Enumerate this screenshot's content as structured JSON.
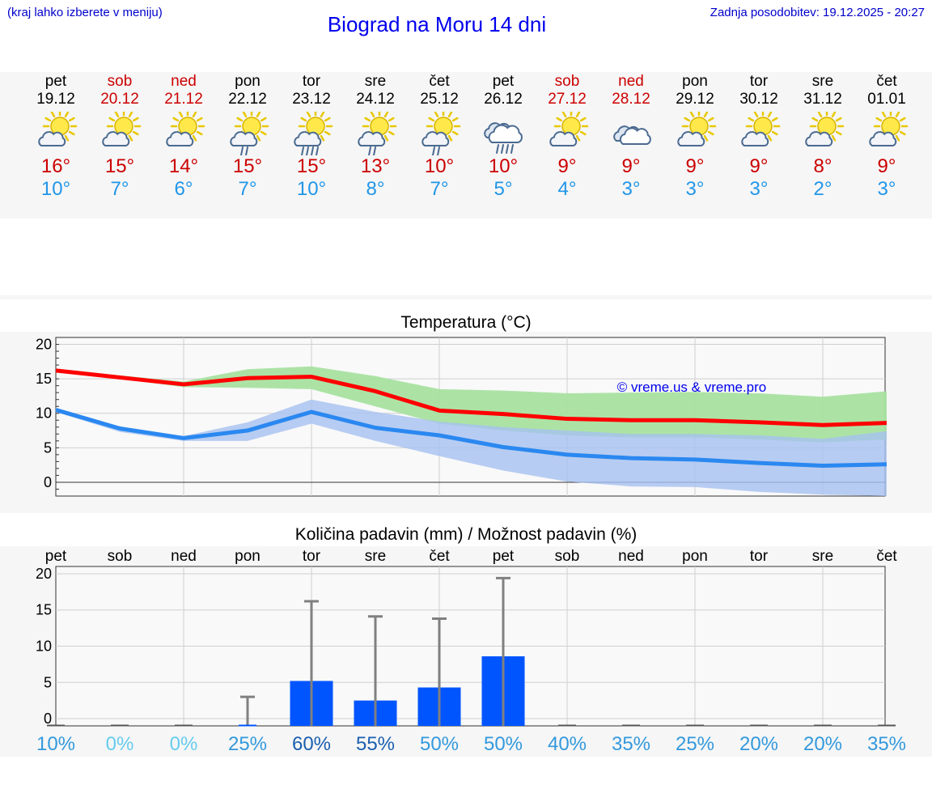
{
  "header": {
    "location_hint": "(kraj lahko izberete v meniju)",
    "title": "Biograd na Moru 14 dni",
    "updated": "Zadnja posodobitev: 19.12.2025 - 20:27"
  },
  "days": [
    {
      "name": "pet",
      "date": "19.12",
      "max": "16°",
      "min": "10°",
      "icon": "partly-cloudy-icon",
      "weekend": false
    },
    {
      "name": "sob",
      "date": "20.12",
      "max": "15°",
      "min": "7°",
      "icon": "partly-cloudy-icon",
      "weekend": true
    },
    {
      "name": "ned",
      "date": "21.12",
      "max": "14°",
      "min": "6°",
      "icon": "partly-cloudy-icon",
      "weekend": true
    },
    {
      "name": "pon",
      "date": "22.12",
      "max": "15°",
      "min": "7°",
      "icon": "partly-cloudy-light-rain-icon",
      "weekend": false
    },
    {
      "name": "tor",
      "date": "23.12",
      "max": "15°",
      "min": "10°",
      "icon": "partly-cloudy-rain-icon",
      "weekend": false
    },
    {
      "name": "sre",
      "date": "24.12",
      "max": "13°",
      "min": "8°",
      "icon": "partly-cloudy-light-rain-icon",
      "weekend": false
    },
    {
      "name": "čet",
      "date": "25.12",
      "max": "10°",
      "min": "7°",
      "icon": "partly-cloudy-light-rain-icon",
      "weekend": false
    },
    {
      "name": "pet",
      "date": "26.12",
      "max": "10°",
      "min": "5°",
      "icon": "cloudy-rain-icon",
      "weekend": false
    },
    {
      "name": "sob",
      "date": "27.12",
      "max": "9°",
      "min": "4°",
      "icon": "partly-cloudy-icon",
      "weekend": true
    },
    {
      "name": "ned",
      "date": "28.12",
      "max": "9°",
      "min": "3°",
      "icon": "cloudy-icon",
      "weekend": true
    },
    {
      "name": "pon",
      "date": "29.12",
      "max": "9°",
      "min": "3°",
      "icon": "partly-cloudy-icon",
      "weekend": false
    },
    {
      "name": "tor",
      "date": "30.12",
      "max": "9°",
      "min": "3°",
      "icon": "partly-cloudy-icon",
      "weekend": false
    },
    {
      "name": "sre",
      "date": "31.12",
      "max": "8°",
      "min": "2°",
      "icon": "partly-cloudy-icon",
      "weekend": false
    },
    {
      "name": "čet",
      "date": "01.01",
      "max": "9°",
      "min": "3°",
      "icon": "partly-cloudy-icon",
      "weekend": false
    }
  ],
  "colors": {
    "max": "#cc0000",
    "min": "#2196e8",
    "max_line": "#ff0000",
    "min_line": "#2a88f0",
    "max_band": "#a8e2a0",
    "min_band": "#a6c0f0",
    "bar": "#0055ff",
    "whisker": "#808080",
    "watermark": "#0000ee"
  },
  "chart_data": [
    {
      "type": "line",
      "title": "Temperatura (°C)",
      "watermark": "© vreme.us & vreme.pro",
      "ylim": [
        -2,
        21
      ],
      "yticks": [
        0,
        5,
        10,
        15,
        20
      ],
      "x": [
        1,
        2,
        3,
        4,
        5,
        6,
        7,
        8,
        9,
        10,
        11,
        12,
        13,
        14
      ],
      "series": [
        {
          "name": "max",
          "values": [
            16.2,
            15.2,
            14.2,
            15.1,
            15.3,
            13.2,
            10.4,
            9.9,
            9.2,
            9.0,
            9.0,
            8.7,
            8.3,
            8.6
          ],
          "band_low": [
            16.0,
            15.0,
            13.8,
            13.7,
            13.5,
            11.0,
            8.5,
            7.5,
            6.8,
            6.5,
            6.5,
            6.2,
            5.8,
            6.2
          ],
          "band_high": [
            16.4,
            15.5,
            14.6,
            16.4,
            16.8,
            15.4,
            13.5,
            13.3,
            12.9,
            13.0,
            13.1,
            12.9,
            12.4,
            13.2
          ]
        },
        {
          "name": "min",
          "values": [
            10.5,
            7.8,
            6.4,
            7.5,
            10.2,
            7.9,
            6.8,
            5.1,
            4.0,
            3.5,
            3.3,
            2.8,
            2.4,
            2.6
          ],
          "band_low": [
            10.2,
            7.3,
            6.0,
            6.0,
            8.5,
            6.0,
            3.8,
            1.7,
            0.1,
            -0.6,
            -0.7,
            -1.4,
            -1.8,
            -2.0
          ],
          "band_high": [
            10.8,
            8.1,
            6.7,
            8.7,
            12.0,
            10.2,
            8.8,
            8.0,
            7.5,
            7.0,
            7.0,
            6.8,
            6.3,
            7.4
          ]
        }
      ]
    },
    {
      "type": "bar",
      "title": "Količina padavin (mm) / Možnost padavin (%)",
      "ylim": [
        -1,
        21
      ],
      "yticks": [
        0,
        5,
        10,
        15,
        20
      ],
      "categories": [
        "pet",
        "sob",
        "ned",
        "pon",
        "tor",
        "sre",
        "čet",
        "pet",
        "sob",
        "ned",
        "pon",
        "tor",
        "sre",
        "čet"
      ],
      "values": [
        0,
        0,
        0,
        0.1,
        5.2,
        2.5,
        4.3,
        8.6,
        0,
        0,
        0,
        0,
        0,
        0
      ],
      "max_values": [
        0,
        0,
        0,
        3.0,
        16.2,
        14.1,
        13.8,
        19.4,
        0,
        0,
        0,
        0,
        0,
        0
      ],
      "probability": [
        "10%",
        "0%",
        "0%",
        "25%",
        "60%",
        "55%",
        "50%",
        "50%",
        "40%",
        "35%",
        "25%",
        "20%",
        "20%",
        "35%"
      ],
      "probability_colors": [
        "#3399dd",
        "#66ccee",
        "#66ccee",
        "#3399dd",
        "#1a5fb0",
        "#1a5fb0",
        "#3399dd",
        "#3399dd",
        "#3399dd",
        "#3399dd",
        "#3399dd",
        "#3399dd",
        "#3399dd",
        "#3399dd"
      ]
    }
  ]
}
